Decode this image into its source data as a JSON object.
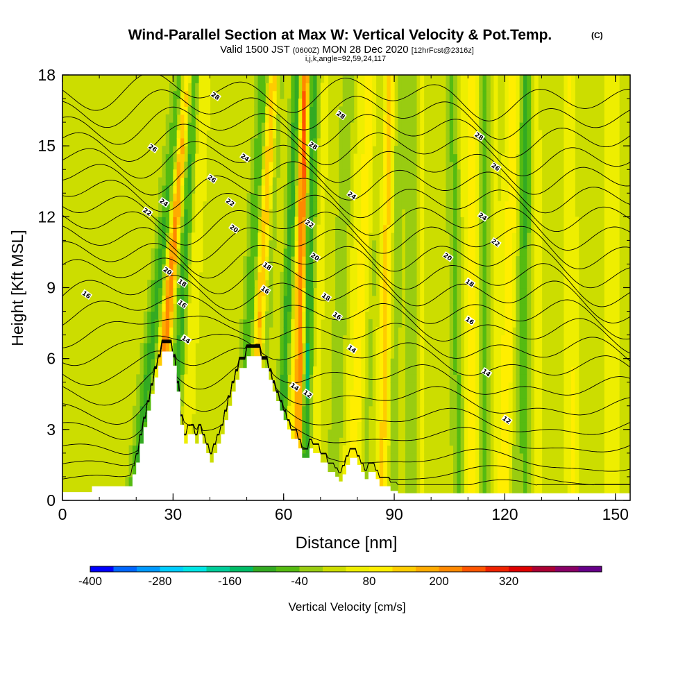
{
  "chart_data": {
    "type": "heatmap",
    "title": "Wind-Parallel Section at Max W: Vertical Velocity & Pot.Temp.",
    "title_mark": "(C)",
    "subtitle_parts": [
      "Valid 1500 JST",
      "(0600Z)",
      "MON 28 Dec 2020",
      "[12hrFcst@2316z]"
    ],
    "subtitle2": "i,j,k,angle=92,59,24,117",
    "xlabel": "Distance [nm]",
    "ylabel": "Height [Kft MSL]",
    "xlim": [
      0,
      154
    ],
    "ylim": [
      0,
      18
    ],
    "x_ticks": [
      "0",
      "30",
      "60",
      "90",
      "120",
      "150"
    ],
    "y_ticks": [
      "0",
      "3",
      "6",
      "9",
      "12",
      "15",
      "18"
    ],
    "colorbar": {
      "label": "Vertical Velocity [cm/s]",
      "tick_labels": [
        "-400",
        "-280",
        "-160",
        "-40",
        "80",
        "200",
        "320"
      ],
      "colors": [
        "#0000ff",
        "#0066ff",
        "#0099ff",
        "#00ccff",
        "#00e5e5",
        "#00cc99",
        "#00bb66",
        "#33aa22",
        "#55bb11",
        "#99cc11",
        "#ccdd00",
        "#eeee00",
        "#ffee00",
        "#ffcc00",
        "#ffaa00",
        "#ff8800",
        "#ff5500",
        "#ee2200",
        "#dd0000",
        "#aa0033",
        "#880066",
        "#660088"
      ]
    },
    "terrain": [
      [
        0,
        0.35
      ],
      [
        8,
        0.35
      ],
      [
        8,
        0.6
      ],
      [
        19,
        0.6
      ],
      [
        19,
        1.1
      ],
      [
        20,
        1.1
      ],
      [
        20,
        1.6
      ],
      [
        21,
        1.6
      ],
      [
        21,
        2.4
      ],
      [
        22,
        2.4
      ],
      [
        22,
        3.1
      ],
      [
        23,
        3.1
      ],
      [
        23,
        3.8
      ],
      [
        24,
        3.8
      ],
      [
        24,
        4.5
      ],
      [
        25,
        4.5
      ],
      [
        25,
        5.2
      ],
      [
        26,
        5.2
      ],
      [
        26,
        5.7
      ],
      [
        27,
        5.7
      ],
      [
        27,
        6.3
      ],
      [
        30,
        6.3
      ],
      [
        30,
        5.7
      ],
      [
        31,
        5.7
      ],
      [
        31,
        4.6
      ],
      [
        32,
        4.6
      ],
      [
        32,
        3.2
      ],
      [
        33,
        3.2
      ],
      [
        33,
        2.4
      ],
      [
        34,
        2.4
      ],
      [
        34,
        2.8
      ],
      [
        36,
        2.8
      ],
      [
        36,
        2.4
      ],
      [
        37,
        2.4
      ],
      [
        37,
        2.8
      ],
      [
        38,
        2.8
      ],
      [
        38,
        2.4
      ],
      [
        39,
        2.4
      ],
      [
        39,
        2.0
      ],
      [
        40,
        2.0
      ],
      [
        40,
        1.6
      ],
      [
        41,
        1.6
      ],
      [
        41,
        2.0
      ],
      [
        42,
        2.0
      ],
      [
        42,
        2.4
      ],
      [
        43,
        2.4
      ],
      [
        43,
        2.8
      ],
      [
        44,
        2.8
      ],
      [
        44,
        3.4
      ],
      [
        45,
        3.4
      ],
      [
        45,
        4.0
      ],
      [
        46,
        4.0
      ],
      [
        46,
        4.6
      ],
      [
        47,
        4.6
      ],
      [
        47,
        5.1
      ],
      [
        48,
        5.1
      ],
      [
        48,
        5.6
      ],
      [
        50,
        5.6
      ],
      [
        50,
        6.1
      ],
      [
        54,
        6.1
      ],
      [
        54,
        5.6
      ],
      [
        56,
        5.6
      ],
      [
        56,
        5.1
      ],
      [
        57,
        5.1
      ],
      [
        57,
        4.6
      ],
      [
        58,
        4.6
      ],
      [
        58,
        4.2
      ],
      [
        59,
        4.2
      ],
      [
        59,
        3.8
      ],
      [
        60,
        3.8
      ],
      [
        60,
        3.4
      ],
      [
        61,
        3.4
      ],
      [
        61,
        3.0
      ],
      [
        62,
        3.0
      ],
      [
        62,
        2.6
      ],
      [
        64,
        2.6
      ],
      [
        64,
        2.2
      ],
      [
        65,
        2.2
      ],
      [
        65,
        1.8
      ],
      [
        67,
        1.8
      ],
      [
        67,
        2.2
      ],
      [
        68,
        2.2
      ],
      [
        68,
        2.0
      ],
      [
        70,
        2.0
      ],
      [
        70,
        1.6
      ],
      [
        72,
        1.6
      ],
      [
        72,
        1.2
      ],
      [
        74,
        1.2
      ],
      [
        74,
        1.0
      ],
      [
        75,
        1.0
      ],
      [
        75,
        0.8
      ],
      [
        76,
        0.8
      ],
      [
        76,
        1.1
      ],
      [
        77,
        1.1
      ],
      [
        77,
        1.5
      ],
      [
        78,
        1.5
      ],
      [
        78,
        1.8
      ],
      [
        80,
        1.8
      ],
      [
        80,
        1.5
      ],
      [
        81,
        1.5
      ],
      [
        81,
        1.2
      ],
      [
        82,
        1.2
      ],
      [
        82,
        0.9
      ],
      [
        83,
        0.9
      ],
      [
        83,
        1.2
      ],
      [
        85,
        1.2
      ],
      [
        85,
        0.9
      ],
      [
        86,
        0.9
      ],
      [
        86,
        0.6
      ],
      [
        89,
        0.6
      ],
      [
        89,
        0.4
      ],
      [
        91,
        0.4
      ],
      [
        91,
        0.3
      ],
      [
        154,
        0.3
      ]
    ],
    "w_series": [
      {
        "name": "",
        "x0": 20,
        "x1": 33,
        "dx": 1.6,
        "amp": -170,
        "width": 2.4
      },
      {
        "name": "",
        "x0": 25,
        "x1": 34,
        "dx": 0.6,
        "amp": 320,
        "width": 1.6
      },
      {
        "name": "",
        "x0": 30,
        "x1": 36,
        "dx": 2.0,
        "amp": -130,
        "width": 1.8
      },
      {
        "name": "",
        "x0": 48,
        "x1": 55,
        "dx": 2.0,
        "amp": -120,
        "width": 2.0
      },
      {
        "name": "",
        "x0": 51,
        "x1": 57,
        "dx": 1.8,
        "amp": 110,
        "width": 1.4
      },
      {
        "name": "",
        "x0": 59,
        "x1": 64,
        "dx": 1.5,
        "amp": -160,
        "width": 1.6
      },
      {
        "name": "",
        "x0": 64,
        "x1": 66,
        "dx": 1.2,
        "amp": 230,
        "width": 1.3
      },
      {
        "name": "",
        "x0": 66,
        "x1": 69,
        "dx": 1.5,
        "amp": -100,
        "width": 1.6
      },
      {
        "name": "",
        "x0": 74,
        "x1": 78,
        "dx": 1.8,
        "amp": -70,
        "width": 2.2
      },
      {
        "name": "",
        "x0": 79,
        "x1": 84,
        "dx": 2.0,
        "amp": 90,
        "width": 2.0
      },
      {
        "name": "",
        "x0": 87,
        "x1": 89,
        "dx": 1.8,
        "amp": 130,
        "width": 1.8
      },
      {
        "name": "",
        "x0": 95,
        "x1": 95,
        "dx": 1.8,
        "amp": -60,
        "width": 2.0
      },
      {
        "name": "",
        "x0": 108,
        "x1": 106,
        "dx": 1.8,
        "amp": -90,
        "width": 2.0
      },
      {
        "name": "",
        "x0": 112,
        "x1": 112,
        "dx": 1.8,
        "amp": 90,
        "width": 2.0
      },
      {
        "name": "",
        "x0": 115,
        "x1": 115,
        "dx": 1.5,
        "amp": -80,
        "width": 1.8
      },
      {
        "name": "",
        "x0": 120,
        "x1": 123,
        "dx": 1.8,
        "amp": 110,
        "width": 2.0
      },
      {
        "name": "",
        "x0": 126,
        "x1": 126,
        "dx": 1.5,
        "amp": -110,
        "width": 1.8
      },
      {
        "name": "",
        "x0": 139,
        "x1": 138,
        "dx": 1.8,
        "amp": 70,
        "width": 2.0
      },
      {
        "name": "",
        "x0": 150,
        "x1": 150,
        "dx": 1.8,
        "amp": 60,
        "width": 2.2
      }
    ],
    "theta_levels": [
      {
        "base": 0.7,
        "label": ""
      },
      {
        "base": 1.3,
        "label": ""
      },
      {
        "base": 2.0,
        "label": ""
      },
      {
        "base": 2.9,
        "label": "12"
      },
      {
        "base": 3.7,
        "label": ""
      },
      {
        "base": 4.6,
        "label": "14"
      },
      {
        "base": 5.5,
        "label": ""
      },
      {
        "base": 6.4,
        "label": "16"
      },
      {
        "base": 7.2,
        "label": ""
      },
      {
        "base": 8.0,
        "label": "18"
      },
      {
        "base": 8.8,
        "label": ""
      },
      {
        "base": 9.6,
        "label": "20"
      },
      {
        "base": 10.3,
        "label": ""
      },
      {
        "base": 11.0,
        "label": "22"
      },
      {
        "base": 11.7,
        "label": ""
      },
      {
        "base": 12.4,
        "label": "24"
      },
      {
        "base": 13.1,
        "label": ""
      },
      {
        "base": 13.8,
        "label": "26"
      },
      {
        "base": 14.5,
        "label": ""
      },
      {
        "base": 15.2,
        "label": "28"
      },
      {
        "base": 15.9,
        "label": ""
      },
      {
        "base": 16.6,
        "label": ""
      },
      {
        "base": 17.3,
        "label": ""
      }
    ],
    "contour_labels": [
      {
        "x": 6.5,
        "y": 8.7,
        "text": "16"
      },
      {
        "x": 40.5,
        "y": 13.6,
        "text": "26"
      },
      {
        "x": 41.5,
        "y": 17.1,
        "text": "28"
      },
      {
        "x": 24.5,
        "y": 14.9,
        "text": "26"
      },
      {
        "x": 23.0,
        "y": 12.2,
        "text": "22"
      },
      {
        "x": 27.5,
        "y": 12.6,
        "text": "24"
      },
      {
        "x": 28.5,
        "y": 9.7,
        "text": "20"
      },
      {
        "x": 32.5,
        "y": 9.2,
        "text": "18"
      },
      {
        "x": 32.5,
        "y": 8.3,
        "text": "16"
      },
      {
        "x": 33.5,
        "y": 6.8,
        "text": "14"
      },
      {
        "x": 45.5,
        "y": 12.6,
        "text": "22"
      },
      {
        "x": 46.5,
        "y": 11.5,
        "text": "20"
      },
      {
        "x": 49.5,
        "y": 14.5,
        "text": "24"
      },
      {
        "x": 55.5,
        "y": 9.9,
        "text": "18"
      },
      {
        "x": 55.0,
        "y": 8.9,
        "text": "16"
      },
      {
        "x": 63.0,
        "y": 4.8,
        "text": "14"
      },
      {
        "x": 66.5,
        "y": 4.5,
        "text": "12"
      },
      {
        "x": 68.0,
        "y": 15.0,
        "text": "28"
      },
      {
        "x": 67.0,
        "y": 11.7,
        "text": "22"
      },
      {
        "x": 68.5,
        "y": 10.3,
        "text": "20"
      },
      {
        "x": 71.5,
        "y": 8.6,
        "text": "18"
      },
      {
        "x": 74.5,
        "y": 7.8,
        "text": "16"
      },
      {
        "x": 78.5,
        "y": 6.4,
        "text": "14"
      },
      {
        "x": 75.5,
        "y": 16.3,
        "text": "28"
      },
      {
        "x": 78.5,
        "y": 12.9,
        "text": "24"
      },
      {
        "x": 113.0,
        "y": 15.4,
        "text": "28"
      },
      {
        "x": 117.5,
        "y": 14.1,
        "text": "26"
      },
      {
        "x": 114.0,
        "y": 12.0,
        "text": "24"
      },
      {
        "x": 117.5,
        "y": 10.9,
        "text": "22"
      },
      {
        "x": 104.5,
        "y": 10.3,
        "text": "20"
      },
      {
        "x": 110.5,
        "y": 9.2,
        "text": "18"
      },
      {
        "x": 110.5,
        "y": 7.6,
        "text": "16"
      },
      {
        "x": 115.0,
        "y": 5.4,
        "text": "14"
      },
      {
        "x": 120.5,
        "y": 3.4,
        "text": "12"
      }
    ]
  }
}
